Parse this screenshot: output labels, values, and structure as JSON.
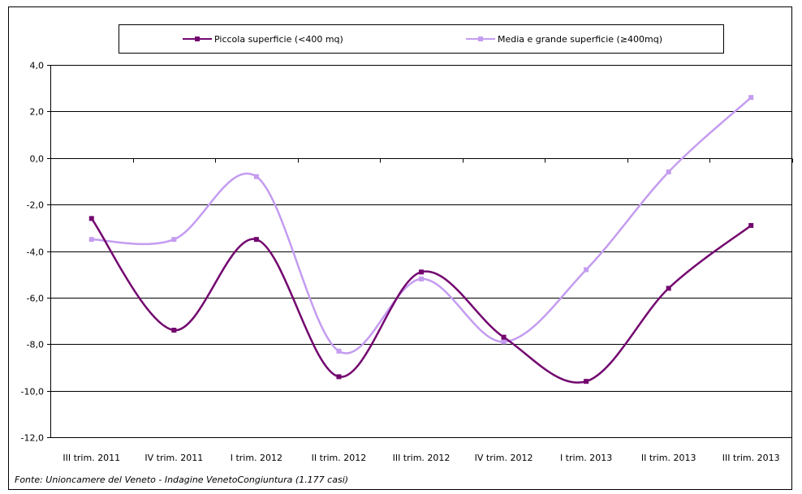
{
  "chart_data": {
    "type": "line",
    "title": "",
    "xlabel": "",
    "ylabel": "",
    "categories": [
      "III trim. 2011",
      "IV trim. 2011",
      "I trim. 2012",
      "II trim. 2012",
      "III trim. 2012",
      "IV trim. 2012",
      "I trim. 2013",
      "II trim. 2013",
      "III trim. 2013"
    ],
    "series": [
      {
        "name": "Piccola superficie (<400 mq)",
        "color": "#73066f",
        "values": [
          -2.6,
          -7.4,
          -3.5,
          -9.4,
          -4.9,
          -7.7,
          -9.6,
          -5.6,
          -2.9
        ]
      },
      {
        "name": "Media e grande superficie (≥400mq)",
        "color": "#c49cf0",
        "values": [
          -3.5,
          -3.5,
          -0.8,
          -8.3,
          -5.2,
          -7.9,
          -4.8,
          -0.6,
          2.6
        ]
      }
    ],
    "ylim": [
      -12,
      4
    ],
    "yticks": [
      4,
      2,
      0,
      -2,
      -4,
      -6,
      -8,
      -10,
      -12
    ],
    "ytick_labels": [
      "4,0",
      "2,0",
      "0,0",
      "-2,0",
      "-4,0",
      "-6,0",
      "-8,0",
      "-10,0",
      "-12,0"
    ],
    "grid": true,
    "legend_position": "top",
    "smooth": true
  },
  "source_note": "Fonte: Unioncamere del Veneto - Indagine VenetoCongiuntura (1.177 casi)"
}
